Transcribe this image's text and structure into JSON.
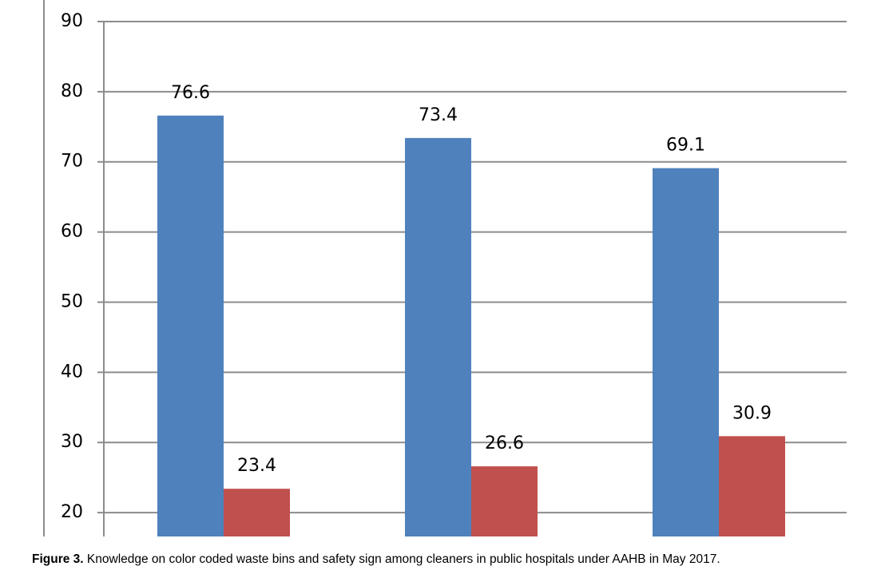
{
  "chart_data": {
    "type": "bar",
    "categories": [
      null,
      null,
      null
    ],
    "series": [
      {
        "color": "#4f81bd",
        "values": [
          76.6,
          73.4,
          69.1
        ]
      },
      {
        "color": "#c0504d",
        "values": [
          23.4,
          26.6,
          30.9
        ]
      }
    ],
    "ylim": [
      16.6,
      90
    ],
    "yticks": [
      20,
      30,
      40,
      50,
      60,
      70,
      80,
      90
    ],
    "grid": true,
    "caption_label": "Figure 3.",
    "caption": "Knowledge on color coded waste bins and safety sign among cleaners in public hospitals under AAHB in May 2017."
  }
}
